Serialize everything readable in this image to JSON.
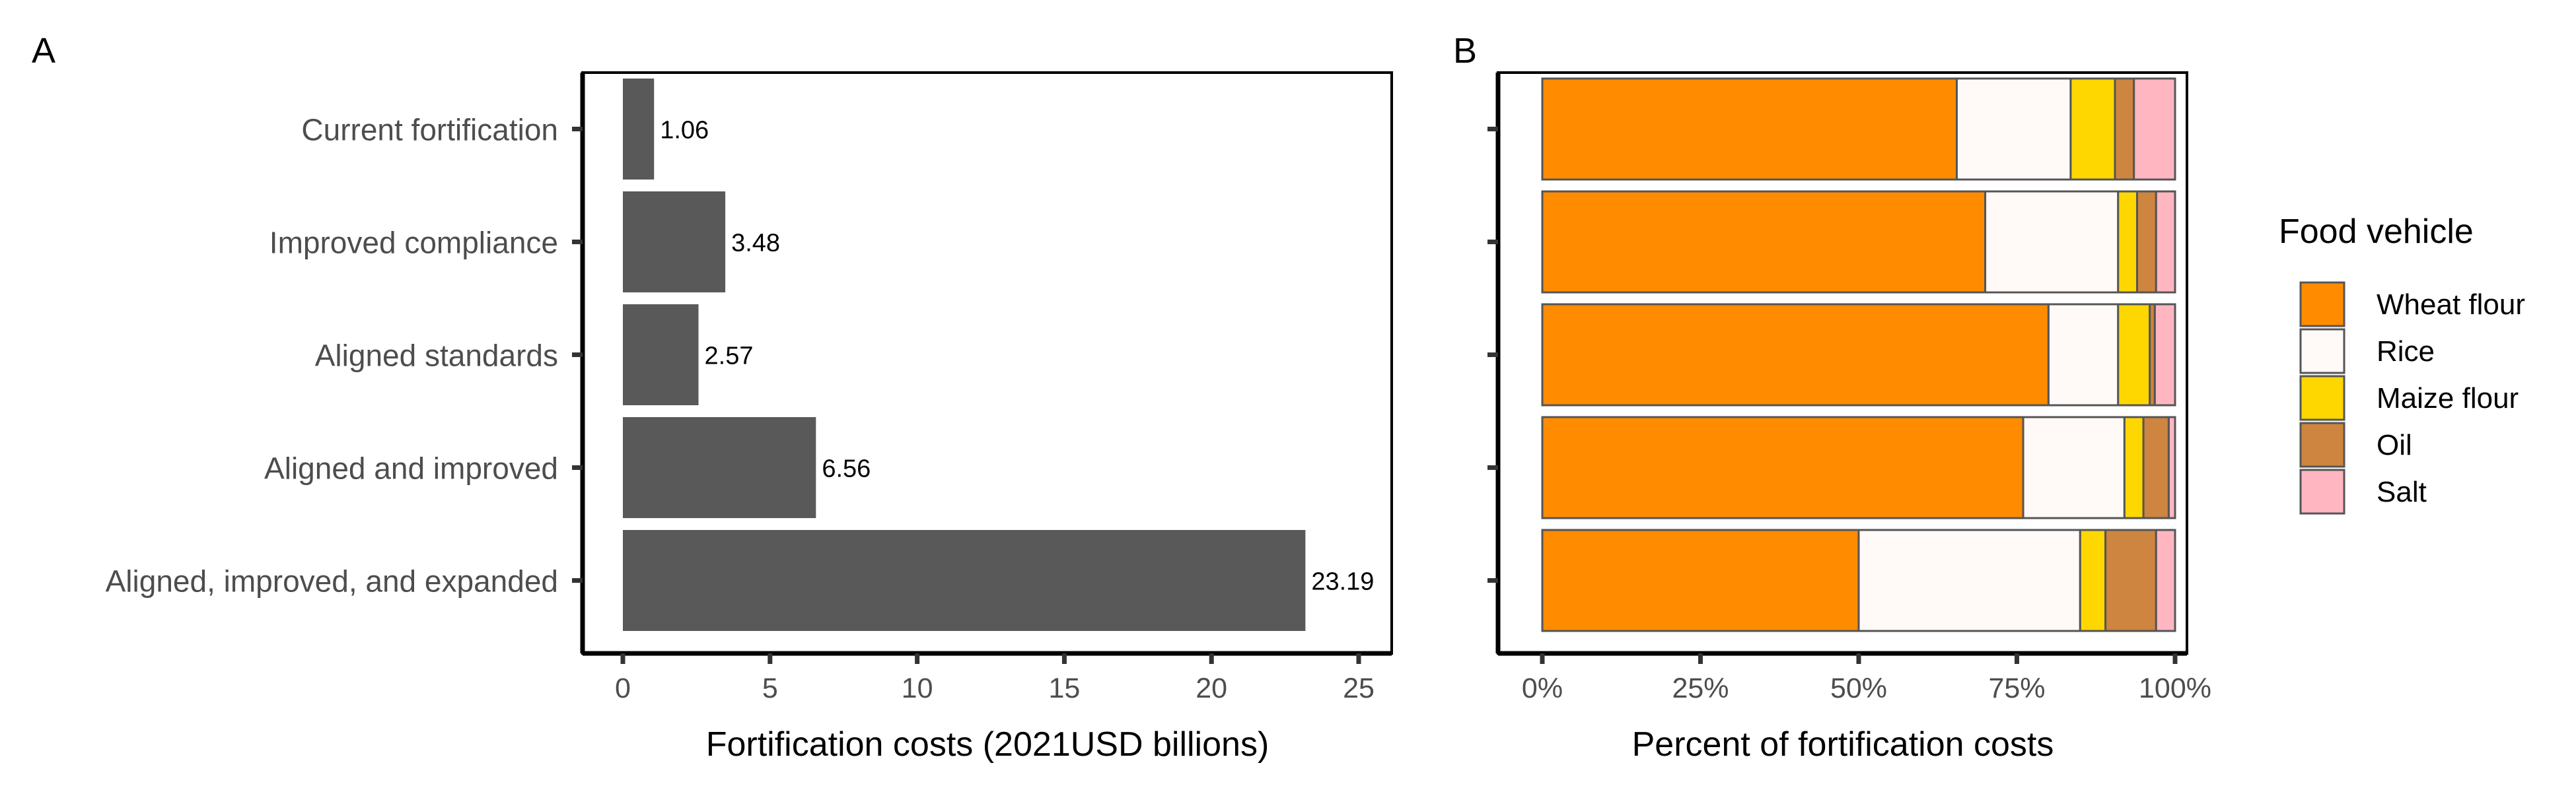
{
  "chart_data": [
    {
      "panel": "A",
      "type": "bar",
      "orientation": "horizontal",
      "categories": [
        "Current fortification",
        "Improved compliance",
        "Aligned standards",
        "Aligned and improved",
        "Aligned, improved, and expanded"
      ],
      "values": [
        1.06,
        3.48,
        2.57,
        6.56,
        23.19
      ],
      "value_labels": [
        "1.06",
        "3.48",
        "2.57",
        "6.56",
        "23.19"
      ],
      "xlabel": "Fortification costs (2021USD billions)",
      "ylabel": "",
      "xlim": [
        0,
        25
      ],
      "xticks": [
        0,
        5,
        10,
        15,
        20,
        25
      ],
      "xtick_labels": [
        "0",
        "5",
        "10",
        "15",
        "20",
        "25"
      ],
      "bar_color": "#595959",
      "grid": false
    },
    {
      "panel": "B",
      "type": "bar",
      "orientation": "horizontal",
      "stacked": true,
      "categories": [
        "Current fortification",
        "Improved compliance",
        "Aligned standards",
        "Aligned and improved",
        "Aligned, improved, and expanded"
      ],
      "series": [
        {
          "name": "Wheat flour",
          "color": "#FF8C00",
          "values": [
            65.5,
            70,
            80,
            76,
            50
          ]
        },
        {
          "name": "Rice",
          "color": "#FFFAF8",
          "values": [
            18,
            21,
            11,
            16,
            35
          ]
        },
        {
          "name": "Maize flour",
          "color": "#FFD700",
          "values": [
            7,
            3,
            5,
            3,
            4
          ]
        },
        {
          "name": "Oil",
          "color": "#CD853F",
          "values": [
            3,
            3,
            0.8,
            4,
            8
          ]
        },
        {
          "name": "Salt",
          "color": "#FFB6C1",
          "values": [
            6.5,
            3,
            3.2,
            1,
            3
          ]
        }
      ],
      "xlabel": "Percent of fortification costs",
      "xlim": [
        0,
        100
      ],
      "xticks": [
        0,
        25,
        50,
        75,
        100
      ],
      "xtick_labels": [
        "0%",
        "25%",
        "50%",
        "75%",
        "100%"
      ],
      "legend_title": "Food vehicle",
      "legend_position": "right",
      "grid": false
    }
  ],
  "panel_labels": {
    "a": "A",
    "b": "B"
  }
}
